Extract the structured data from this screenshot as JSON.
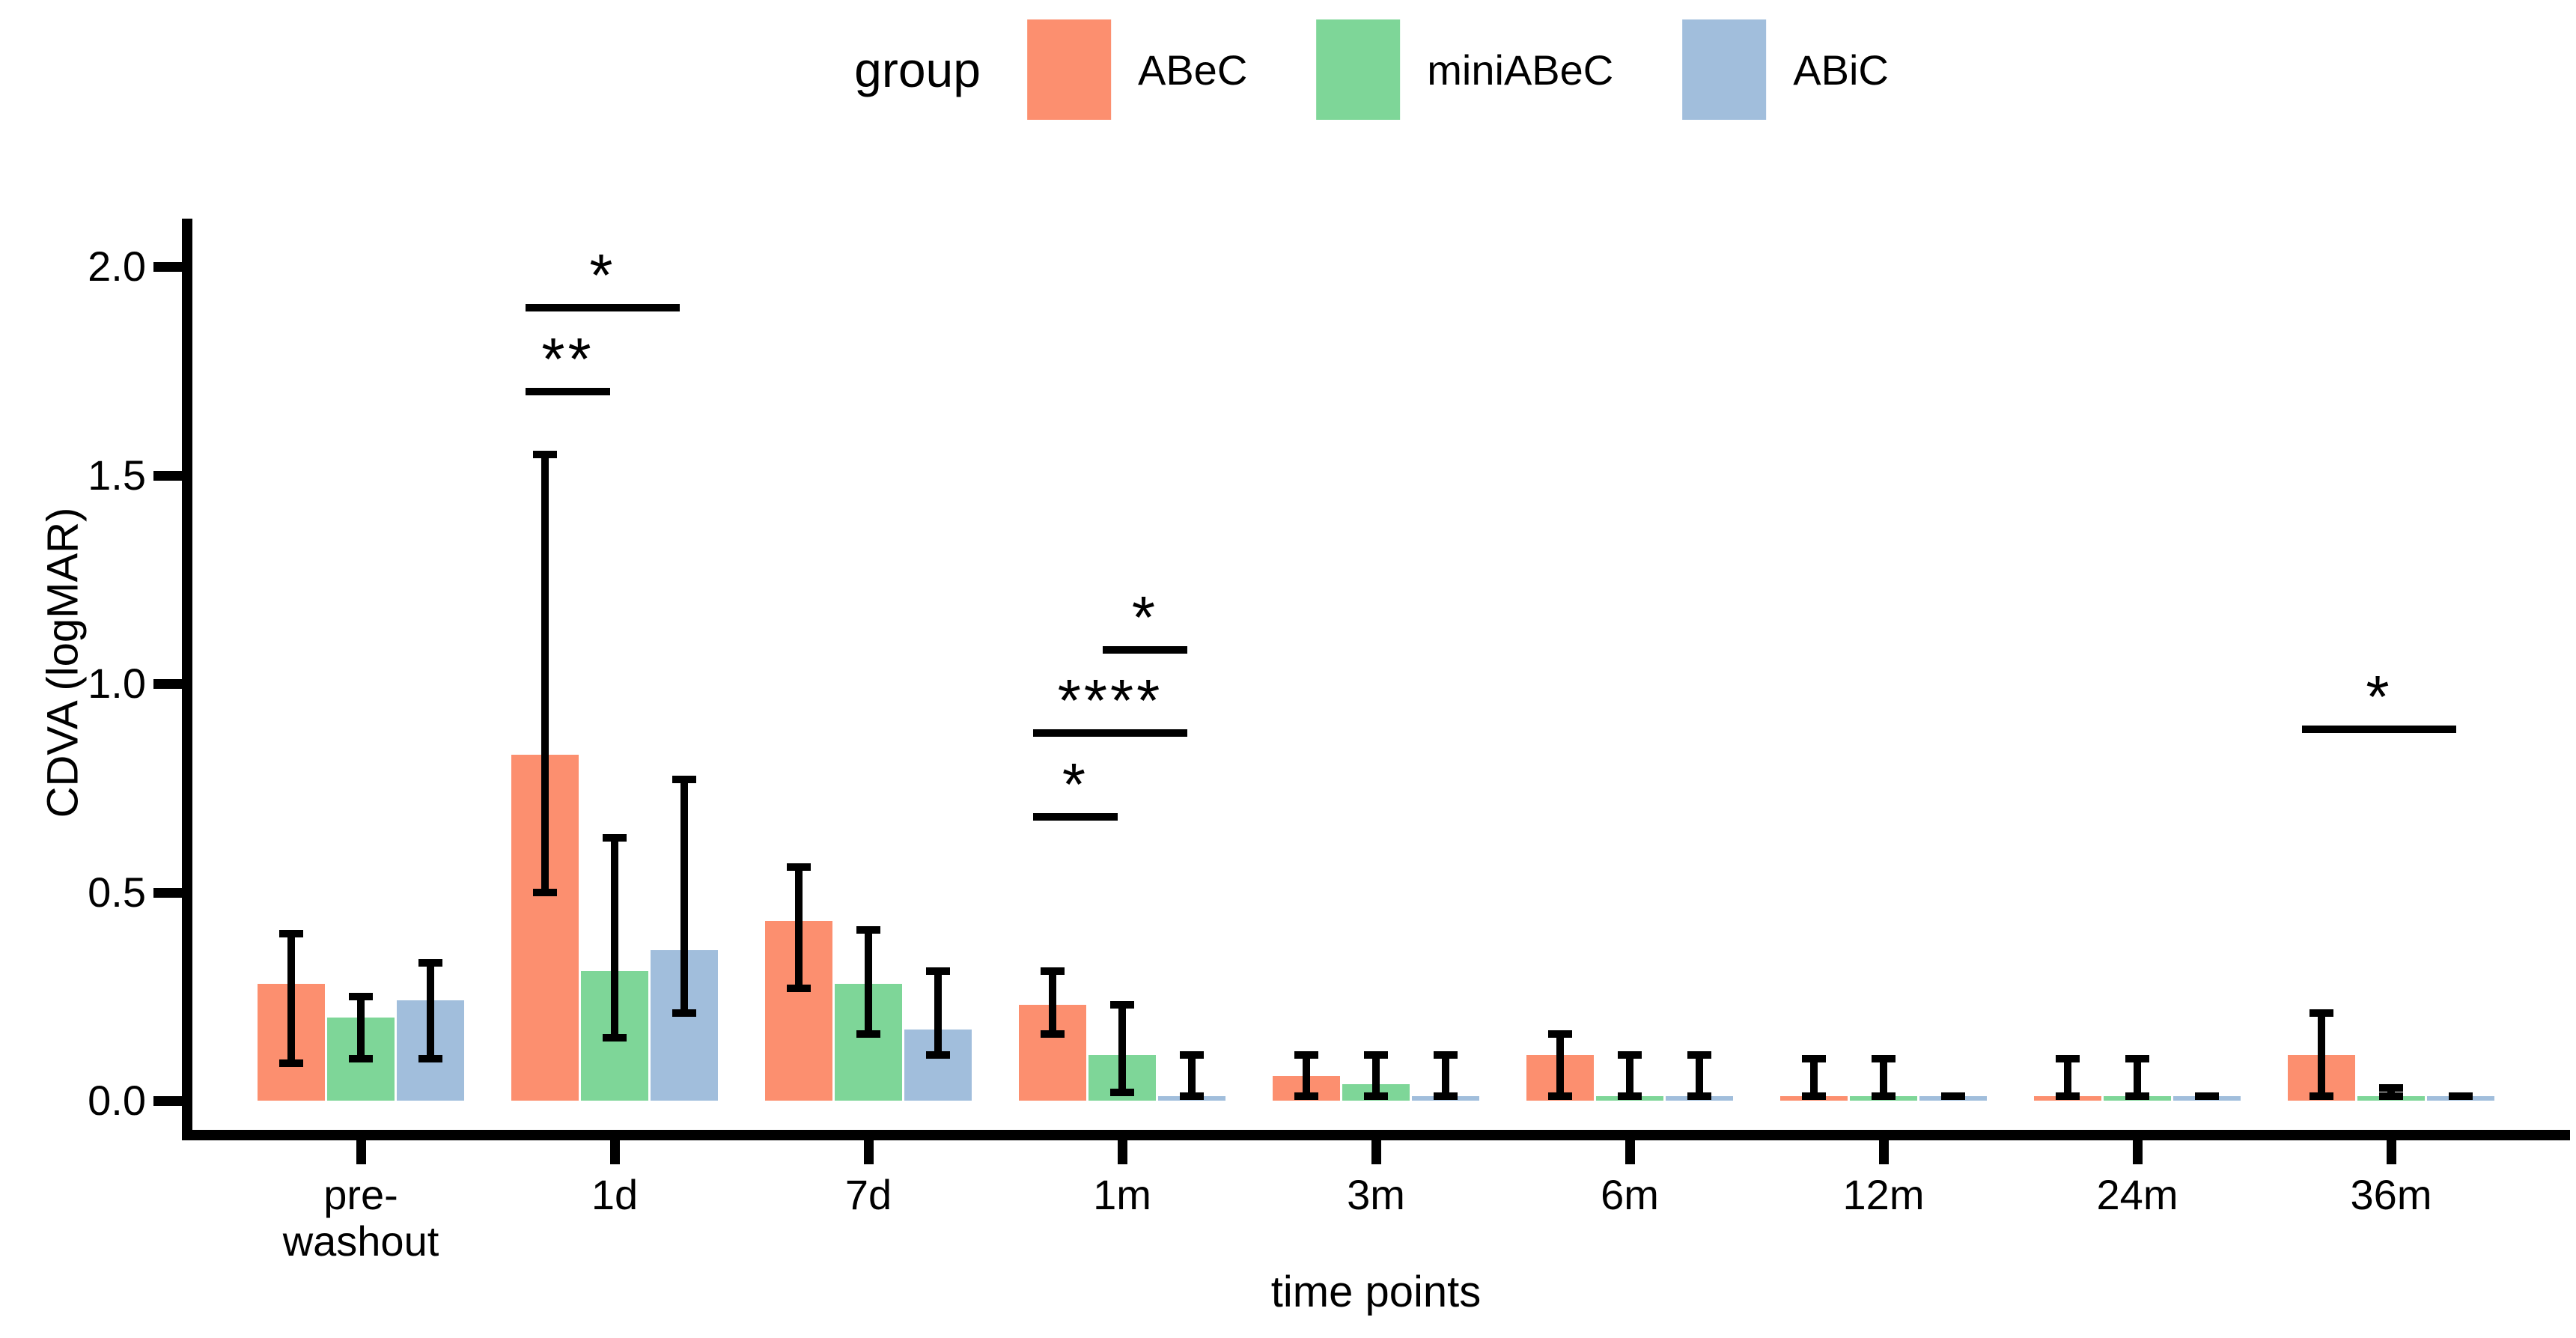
{
  "figure": {
    "background": "#ffffff",
    "text_color": "#000000",
    "legend": {
      "title": "group",
      "position": "top-center",
      "items": [
        {
          "label": "ABeC",
          "color": "#FC8F6F"
        },
        {
          "label": "miniABeC",
          "color": "#7ED698"
        },
        {
          "label": "ABiC",
          "color": "#A1BEDC"
        }
      ]
    },
    "y_axis": {
      "title": "CDVA (logMAR)",
      "tick_labels": [
        "0.0",
        "0.5",
        "1.0",
        "1.5",
        "2.0"
      ]
    },
    "x_axis": {
      "title": "time points",
      "tick_labels": [
        "pre-\nwashout",
        "1d",
        "7d",
        "1m",
        "3m",
        "6m",
        "12m",
        "24m",
        "36m"
      ]
    }
  },
  "chart_data": {
    "type": "bar",
    "title": "",
    "xlabel": "time points",
    "ylabel": "CDVA (logMAR)",
    "categories": [
      "pre-\nwashout",
      "1d",
      "7d",
      "1m",
      "3m",
      "6m",
      "12m",
      "24m",
      "36m"
    ],
    "yticks": [
      0.0,
      0.5,
      1.0,
      1.5,
      2.0
    ],
    "ylim": [
      0,
      2.1
    ],
    "grid": false,
    "legend_position": "top",
    "error_bars": true,
    "series": [
      {
        "name": "ABeC",
        "color": "#FC8F6F",
        "values": [
          0.28,
          0.83,
          0.43,
          0.23,
          0.06,
          0.11,
          0.01,
          0.01,
          0.11
        ],
        "err_lo": [
          0.09,
          0.5,
          0.27,
          0.16,
          0.01,
          0.01,
          0.01,
          0.01,
          0.01
        ],
        "err_hi": [
          0.4,
          1.55,
          0.56,
          0.31,
          0.11,
          0.16,
          0.1,
          0.1,
          0.21
        ]
      },
      {
        "name": "miniABeC",
        "color": "#7ED698",
        "values": [
          0.2,
          0.31,
          0.28,
          0.11,
          0.04,
          0.01,
          0.01,
          0.01,
          0.01
        ],
        "err_lo": [
          0.1,
          0.15,
          0.16,
          0.02,
          0.01,
          0.01,
          0.01,
          0.01,
          0.01
        ],
        "err_hi": [
          0.25,
          0.63,
          0.41,
          0.23,
          0.11,
          0.11,
          0.1,
          0.1,
          0.03
        ]
      },
      {
        "name": "ABiC",
        "color": "#A1BEDC",
        "values": [
          0.24,
          0.36,
          0.17,
          0.01,
          0.01,
          0.01,
          0.01,
          0.01,
          0.01
        ],
        "err_lo": [
          0.1,
          0.21,
          0.11,
          0.01,
          0.01,
          0.01,
          0.01,
          0.01,
          0.01
        ],
        "err_hi": [
          0.33,
          0.77,
          0.31,
          0.11,
          0.11,
          0.11,
          0.01,
          0.01,
          0.01
        ]
      }
    ],
    "significance": [
      {
        "category": "1d",
        "from": "ABeC",
        "to": "miniABeC",
        "label": "**",
        "y": 1.71
      },
      {
        "category": "1d",
        "from": "ABeC",
        "to": "ABiC",
        "label": "*",
        "y": 1.91
      },
      {
        "category": "1m",
        "from": "ABeC",
        "to": "miniABeC",
        "label": "*",
        "y": 0.69
      },
      {
        "category": "1m",
        "from": "ABeC",
        "to": "ABiC",
        "label": "****",
        "y": 0.89
      },
      {
        "category": "1m",
        "from": "miniABeC",
        "to": "ABiC",
        "label": "*",
        "y": 1.09
      },
      {
        "category": "36m",
        "from": "ABeC",
        "to": "ABiC",
        "label": "*",
        "y": 0.9
      }
    ]
  }
}
